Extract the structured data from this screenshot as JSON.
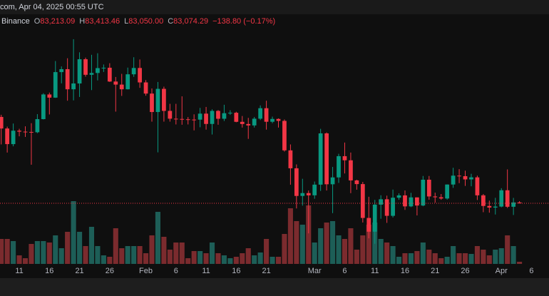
{
  "chart_data": {
    "type": "candlestick",
    "title": "com, Apr 04, 2025 00:55 UTC",
    "legend_source": "Binance",
    "legend_items": [
      {
        "label": "O",
        "value": "83,213.09"
      },
      {
        "label": "H",
        "value": "83,413.46"
      },
      {
        "label": "L",
        "value": "83,050.00"
      },
      {
        "label": "C",
        "value": "83,074.29"
      }
    ],
    "legend_change": "−138.80 (−0.17%)",
    "up_color": "#089981",
    "down_color": "#f23645",
    "volume_up_color": "#1d5e57",
    "volume_down_color": "#7b2b2e",
    "open": [
      96900,
      95050,
      92550,
      94700,
      94550,
      94500,
      94450,
      96550,
      100500,
      99990,
      104080,
      104550,
      101330,
      102260,
      106140,
      103650,
      103940,
      104720,
      104780,
      102570,
      102080,
      101330,
      103730,
      104740,
      102430,
      100640,
      97690,
      101400,
      97870,
      96620,
      96580,
      96530,
      96480,
      96470,
      97430,
      95780,
      97870,
      96610,
      97500,
      97570,
      96120,
      95770,
      95540,
      96620,
      98300,
      96130,
      96580,
      96270,
      91550,
      88680,
      84250,
      84710,
      84350,
      86060,
      94270,
      86120,
      87220,
      90620,
      89960,
      86740,
      86150,
      80730,
      78530,
      82860,
      83720,
      81070,
      83970,
      84340,
      82580,
      84020,
      82720,
      86850,
      84170,
      84040,
      83840,
      86080,
      87500,
      87420,
      86900,
      87230,
      84350,
      82650,
      82390,
      82550,
      85160,
      82520,
      83213.09
    ],
    "high": [
      97250,
      95350,
      95850,
      95000,
      95400,
      95900,
      97350,
      100700,
      100800,
      105850,
      104990,
      106300,
      109350,
      107250,
      106400,
      106850,
      107100,
      105300,
      105500,
      103300,
      103800,
      104800,
      106460,
      106100,
      102800,
      101460,
      102500,
      101750,
      99000,
      99000,
      100200,
      96880,
      97320,
      98350,
      98500,
      98120,
      98000,
      98850,
      97970,
      97730,
      97050,
      96750,
      96900,
      98750,
      99500,
      96950,
      96670,
      96500,
      92500,
      89300,
      87000,
      85120,
      86560,
      95000,
      94420,
      88900,
      91000,
      92800,
      91200,
      86850,
      86500,
      84120,
      83620,
      84360,
      84300,
      85270,
      84670,
      85130,
      84750,
      84020,
      87450,
      87450,
      84780,
      84560,
      86100,
      88760,
      88540,
      88300,
      87800,
      87500,
      84560,
      83500,
      83950,
      85490,
      88500,
      83940,
      83413.46
    ],
    "low": [
      92500,
      91200,
      92200,
      93800,
      93700,
      89250,
      94300,
      96500,
      97300,
      99950,
      102280,
      99500,
      99550,
      100100,
      103350,
      101200,
      102750,
      104100,
      102500,
      97750,
      100270,
      101300,
      103320,
      101560,
      100300,
      96150,
      91230,
      96150,
      96150,
      95700,
      95650,
      95700,
      94750,
      95250,
      94870,
      94090,
      95650,
      96250,
      97230,
      96050,
      95200,
      93390,
      95200,
      96400,
      94870,
      95900,
      95200,
      91350,
      86050,
      82250,
      82700,
      78260,
      83800,
      85050,
      85120,
      81500,
      86340,
      87850,
      84700,
      85250,
      80000,
      77460,
      76600,
      80600,
      79940,
      80800,
      83640,
      82020,
      82460,
      81130,
      82600,
      83650,
      83170,
      83640,
      83660,
      85550,
      86300,
      85860,
      85800,
      83600,
      81650,
      81570,
      81280,
      82430,
      82320,
      81200,
      83050
    ],
    "close": [
      95050,
      92550,
      94700,
      94550,
      94500,
      94450,
      96550,
      100500,
      99990,
      104080,
      104550,
      101330,
      102260,
      106140,
      103650,
      103940,
      104720,
      104780,
      102570,
      102080,
      101330,
      103730,
      104740,
      102430,
      100640,
      97690,
      101400,
      97870,
      96620,
      96580,
      96530,
      96480,
      96470,
      97430,
      95780,
      97870,
      96610,
      97500,
      97570,
      96120,
      95770,
      95540,
      96620,
      98300,
      96130,
      96580,
      96270,
      91550,
      88680,
      84250,
      84710,
      84350,
      86060,
      94270,
      86120,
      87220,
      90620,
      89960,
      86740,
      86150,
      80730,
      78530,
      82860,
      83720,
      81070,
      83970,
      84340,
      82580,
      84020,
      82720,
      86850,
      84170,
      84040,
      83840,
      86080,
      87500,
      87420,
      86900,
      87230,
      84350,
      82650,
      82390,
      82550,
      85160,
      82520,
      83213.09,
      83074.29
    ],
    "volume": [
      35000,
      35000,
      32000,
      12000,
      8000,
      28000,
      32000,
      32000,
      30000,
      40000,
      22000,
      45000,
      88000,
      45000,
      25000,
      52000,
      25000,
      12000,
      10000,
      50000,
      22000,
      25000,
      25000,
      25000,
      15000,
      40000,
      73000,
      38000,
      20000,
      30000,
      30000,
      8000,
      18000,
      18000,
      15000,
      30000,
      15000,
      12000,
      8000,
      10000,
      15000,
      22000,
      12000,
      16000,
      35000,
      10000,
      10000,
      42000,
      78000,
      60000,
      55000,
      82000,
      30000,
      50000,
      58000,
      60000,
      40000,
      35000,
      50000,
      20000,
      40000,
      55000,
      58000,
      35000,
      30000,
      25000,
      10000,
      15000,
      15000,
      18000,
      30000,
      20000,
      15000,
      8000,
      10000,
      25000,
      15000,
      15000,
      14000,
      25000,
      20000,
      12000,
      20000,
      22000,
      40000,
      25000,
      3000
    ],
    "xlim": [
      -0.2,
      90.9
    ],
    "xticks": [
      {
        "value": 3,
        "label": "11"
      },
      {
        "value": 8,
        "label": "16"
      },
      {
        "value": 13,
        "label": "21"
      },
      {
        "value": 18,
        "label": "26"
      },
      {
        "value": 24,
        "label": "Feb"
      },
      {
        "value": 29,
        "label": "6"
      },
      {
        "value": 34,
        "label": "11"
      },
      {
        "value": 39,
        "label": "16"
      },
      {
        "value": 44,
        "label": "21"
      },
      {
        "value": 52,
        "label": "Mar"
      },
      {
        "value": 57,
        "label": "6"
      },
      {
        "value": 62,
        "label": "11"
      },
      {
        "value": 67,
        "label": "16"
      },
      {
        "value": 72,
        "label": "21"
      },
      {
        "value": 77,
        "label": "26"
      },
      {
        "value": 83,
        "label": "Apr"
      },
      {
        "value": 88,
        "label": "6"
      }
    ],
    "ylim": [
      73370,
      113340
    ],
    "y2lim": [
      0,
      350000
    ]
  }
}
